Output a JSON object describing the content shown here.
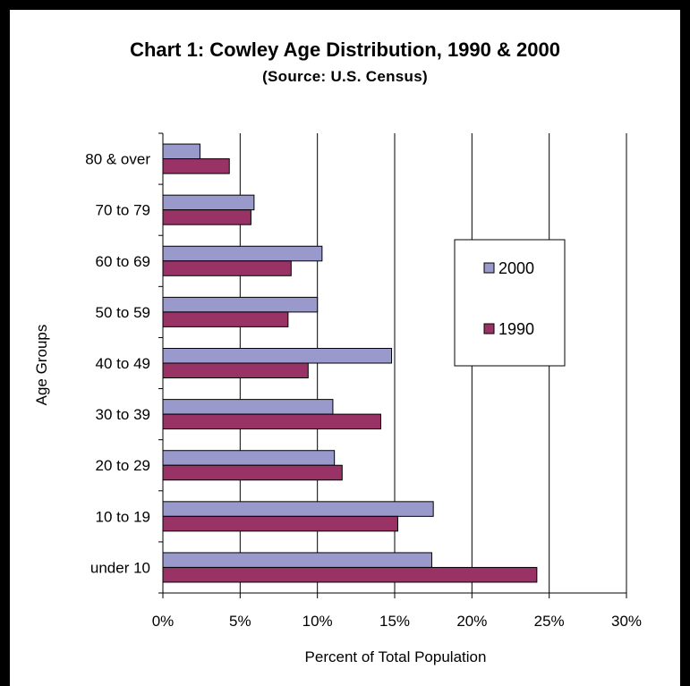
{
  "chart_data": {
    "type": "bar",
    "orientation": "horizontal",
    "title": "Chart 1: Cowley Age Distribution, 1990 & 2000",
    "subtitle": "(Source: U.S. Census)",
    "xlabel": "Percent of Total Population",
    "ylabel": "Age Groups",
    "xlim": [
      0,
      30
    ],
    "x_ticks": [
      "0%",
      "5%",
      "10%",
      "15%",
      "20%",
      "25%",
      "30%"
    ],
    "grid": "vertical",
    "legend_placement": "right",
    "categories": [
      "under 10",
      "10 to 19",
      "20 to 29",
      "30 to 39",
      "40 to 49",
      "50 to 59",
      "60 to 69",
      "70 to 79",
      "80 & over"
    ],
    "series": [
      {
        "name": "2000",
        "color": "#9999cc",
        "values": [
          17.4,
          17.5,
          11.1,
          11.0,
          14.8,
          10.0,
          10.3,
          5.9,
          2.4
        ]
      },
      {
        "name": "1990",
        "color": "#993366",
        "values": [
          24.2,
          15.2,
          11.6,
          14.1,
          9.4,
          8.1,
          8.3,
          5.7,
          4.3
        ]
      }
    ]
  }
}
